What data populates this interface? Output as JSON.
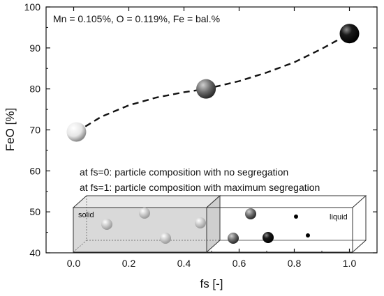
{
  "chart_data": {
    "type": "scatter",
    "annotation": "Mn = 0.105%, O = 0.119%, Fe = bal.%",
    "xlabel": "fs [-]",
    "ylabel": "FeO [%]",
    "xlim": [
      -0.1,
      1.1
    ],
    "ylim": [
      40,
      100
    ],
    "xticks": [
      "0.0",
      "0.2",
      "0.4",
      "0.6",
      "0.8",
      "1.0"
    ],
    "yticks": [
      "40",
      "50",
      "60",
      "70",
      "80",
      "90",
      "100"
    ],
    "points": [
      {
        "x": 0.01,
        "y": 69.5,
        "shade": "#f2f2f2"
      },
      {
        "x": 0.48,
        "y": 80.0,
        "shade": "#6f6f6f"
      },
      {
        "x": 1.0,
        "y": 93.5,
        "shade": "#111111"
      }
    ],
    "trend": {
      "style": "dashed",
      "x": [
        0.01,
        0.1,
        0.2,
        0.3,
        0.4,
        0.48,
        0.6,
        0.7,
        0.8,
        0.9,
        1.0
      ],
      "y": [
        69.5,
        73.2,
        76.0,
        77.9,
        79.2,
        80.0,
        81.9,
        84.0,
        86.5,
        89.8,
        93.5
      ]
    },
    "notes": [
      "at fs=0: particle composition with no segregation",
      "at fs=1: particle composition with maximum segregation"
    ],
    "inset": {
      "solid_label": "solid",
      "liquid_label": "liquid",
      "solid_fill": "#e0e0e0"
    }
  }
}
